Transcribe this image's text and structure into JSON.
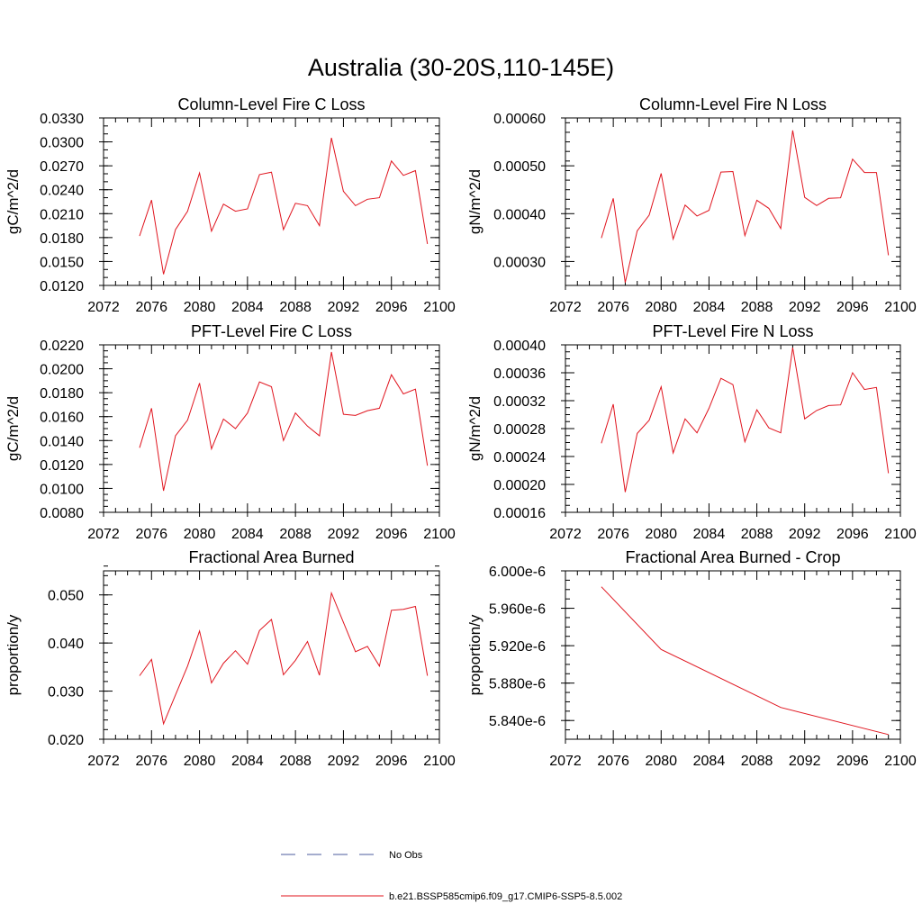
{
  "title": "Australia (30-20S,110-145E)",
  "colors": {
    "model": "#e0141e",
    "obs": "#4b5b9c"
  },
  "legend": [
    {
      "label": "No Obs",
      "style": "dashed",
      "color": "#4b5b9c"
    },
    {
      "label": "b.e21.BSSP585cmip6.f09_g17.CMIP6-SSP5-8.5.002",
      "style": "solid",
      "color": "#e0141e"
    }
  ],
  "chart_data": [
    {
      "type": "line",
      "title": "Column-Level Fire C Loss",
      "ylabel": "gC/m^2/d",
      "xlim": [
        2072,
        2100
      ],
      "xticks": [
        2072,
        2076,
        2080,
        2084,
        2088,
        2092,
        2096,
        2100
      ],
      "ylim": [
        0.012,
        0.033
      ],
      "yticks": [
        0.012,
        0.015,
        0.018,
        0.021,
        0.024,
        0.027,
        0.03,
        0.033
      ],
      "ytick_labels": [
        "0.0120",
        "0.0150",
        "0.0180",
        "0.0210",
        "0.0240",
        "0.0270",
        "0.0300",
        "0.0330"
      ],
      "yminor": 0.001,
      "x": [
        2075,
        2076,
        2077,
        2078,
        2079,
        2080,
        2081,
        2082,
        2083,
        2084,
        2085,
        2086,
        2087,
        2088,
        2089,
        2090,
        2091,
        2092,
        2093,
        2094,
        2095,
        2096,
        2097,
        2098,
        2099
      ],
      "series": [
        {
          "name": "b.e21.BSSP585cmip6.f09_g17.CMIP6-SSP5-8.5.002",
          "values": [
            0.0182,
            0.0227,
            0.0134,
            0.019,
            0.0213,
            0.0261,
            0.0188,
            0.0222,
            0.0213,
            0.0216,
            0.0259,
            0.0262,
            0.019,
            0.0223,
            0.022,
            0.0195,
            0.0305,
            0.0238,
            0.022,
            0.0228,
            0.023,
            0.0276,
            0.0258,
            0.0264,
            0.0172
          ]
        }
      ]
    },
    {
      "type": "line",
      "title": "Column-Level Fire N Loss",
      "ylabel": "gN/m^2/d",
      "xlim": [
        2072,
        2100
      ],
      "xticks": [
        2072,
        2076,
        2080,
        2084,
        2088,
        2092,
        2096,
        2100
      ],
      "ylim": [
        0.00025,
        0.0006
      ],
      "yticks": [
        0.0003,
        0.0004,
        0.0005,
        0.0006
      ],
      "ytick_labels": [
        "0.00030",
        "0.00040",
        "0.00050",
        "0.00060"
      ],
      "yminor": 2e-05,
      "x": [
        2075,
        2076,
        2077,
        2078,
        2079,
        2080,
        2081,
        2082,
        2083,
        2084,
        2085,
        2086,
        2087,
        2088,
        2089,
        2090,
        2091,
        2092,
        2093,
        2094,
        2095,
        2096,
        2097,
        2098,
        2099
      ],
      "series": [
        {
          "name": "b.e21.BSSP585cmip6.f09_g17.CMIP6-SSP5-8.5.002",
          "values": [
            0.000349,
            0.000432,
            0.000256,
            0.000364,
            0.000397,
            0.000484,
            0.000347,
            0.000418,
            0.000395,
            0.000407,
            0.000487,
            0.000488,
            0.000354,
            0.000428,
            0.000411,
            0.000369,
            0.000574,
            0.000434,
            0.000417,
            0.000432,
            0.000433,
            0.000514,
            0.000486,
            0.000486,
            0.000313
          ]
        }
      ]
    },
    {
      "type": "line",
      "title": "PFT-Level Fire C Loss",
      "ylabel": "gC/m^2/d",
      "xlim": [
        2072,
        2100
      ],
      "xticks": [
        2072,
        2076,
        2080,
        2084,
        2088,
        2092,
        2096,
        2100
      ],
      "ylim": [
        0.008,
        0.022
      ],
      "yticks": [
        0.008,
        0.01,
        0.012,
        0.014,
        0.016,
        0.018,
        0.02,
        0.022
      ],
      "ytick_labels": [
        "0.0080",
        "0.0100",
        "0.0120",
        "0.0140",
        "0.0160",
        "0.0180",
        "0.0200",
        "0.0220"
      ],
      "yminor": 0.0005,
      "x": [
        2075,
        2076,
        2077,
        2078,
        2079,
        2080,
        2081,
        2082,
        2083,
        2084,
        2085,
        2086,
        2087,
        2088,
        2089,
        2090,
        2091,
        2092,
        2093,
        2094,
        2095,
        2096,
        2097,
        2098,
        2099
      ],
      "series": [
        {
          "name": "b.e21.BSSP585cmip6.f09_g17.CMIP6-SSP5-8.5.002",
          "values": [
            0.0134,
            0.0167,
            0.0098,
            0.0144,
            0.0157,
            0.0188,
            0.0133,
            0.0158,
            0.015,
            0.0163,
            0.0189,
            0.0185,
            0.014,
            0.0163,
            0.0152,
            0.0144,
            0.0214,
            0.0162,
            0.0161,
            0.0165,
            0.0167,
            0.0195,
            0.0179,
            0.0183,
            0.0119
          ]
        }
      ]
    },
    {
      "type": "line",
      "title": "PFT-Level Fire N Loss",
      "ylabel": "gN/m^2/d",
      "xlim": [
        2072,
        2100
      ],
      "xticks": [
        2072,
        2076,
        2080,
        2084,
        2088,
        2092,
        2096,
        2100
      ],
      "ylim": [
        0.00016,
        0.0004
      ],
      "yticks": [
        0.00016,
        0.0002,
        0.00024,
        0.00028,
        0.00032,
        0.00036,
        0.0004
      ],
      "ytick_labels": [
        "0.00016",
        "0.00020",
        "0.00024",
        "0.00028",
        "0.00032",
        "0.00036",
        "0.00040"
      ],
      "yminor": 1e-05,
      "x": [
        2075,
        2076,
        2077,
        2078,
        2079,
        2080,
        2081,
        2082,
        2083,
        2084,
        2085,
        2086,
        2087,
        2088,
        2089,
        2090,
        2091,
        2092,
        2093,
        2094,
        2095,
        2096,
        2097,
        2098,
        2099
      ],
      "series": [
        {
          "name": "b.e21.BSSP585cmip6.f09_g17.CMIP6-SSP5-8.5.002",
          "values": [
            0.000259,
            0.000315,
            0.000189,
            0.000273,
            0.000292,
            0.00034,
            0.000245,
            0.000294,
            0.000274,
            0.000309,
            0.000352,
            0.000343,
            0.000261,
            0.000307,
            0.000281,
            0.000274,
            0.000396,
            0.000294,
            0.000306,
            0.000313,
            0.000314,
            0.00036,
            0.000336,
            0.000339,
            0.000216
          ]
        }
      ]
    },
    {
      "type": "line",
      "title": "Fractional Area Burned",
      "ylabel": "proportion/y",
      "xlim": [
        2072,
        2100
      ],
      "xticks": [
        2072,
        2076,
        2080,
        2084,
        2088,
        2092,
        2096,
        2100
      ],
      "ylim": [
        0.02,
        0.055
      ],
      "yticks": [
        0.02,
        0.03,
        0.04,
        0.05
      ],
      "ytick_labels": [
        "0.020",
        "0.030",
        "0.040",
        "0.050"
      ],
      "yminor": 0.002,
      "x": [
        2075,
        2076,
        2077,
        2078,
        2079,
        2080,
        2081,
        2082,
        2083,
        2084,
        2085,
        2086,
        2087,
        2088,
        2089,
        2090,
        2091,
        2092,
        2093,
        2094,
        2095,
        2096,
        2097,
        2098,
        2099
      ],
      "series": [
        {
          "name": "b.e21.BSSP585cmip6.f09_g17.CMIP6-SSP5-8.5.002",
          "values": [
            0.0332,
            0.0366,
            0.0232,
            0.0292,
            0.0352,
            0.0425,
            0.0317,
            0.0358,
            0.0384,
            0.0356,
            0.0426,
            0.0449,
            0.0334,
            0.0364,
            0.0403,
            0.0333,
            0.0504,
            0.0443,
            0.0382,
            0.0393,
            0.0352,
            0.0468,
            0.047,
            0.0476,
            0.0332
          ]
        }
      ]
    },
    {
      "type": "line",
      "title": "Fractional Area Burned - Crop",
      "ylabel": "proportion/y",
      "xlim": [
        2072,
        2100
      ],
      "xticks": [
        2072,
        2076,
        2080,
        2084,
        2088,
        2092,
        2096,
        2100
      ],
      "ylim": [
        5.82e-06,
        6e-06
      ],
      "yticks": [
        5.84e-06,
        5.88e-06,
        5.92e-06,
        5.96e-06,
        6e-06
      ],
      "ytick_labels": [
        "5.840e-6",
        "5.880e-6",
        "5.920e-6",
        "5.960e-6",
        "6.000e-6"
      ],
      "yminor": 1e-08,
      "x": [
        2075,
        2080,
        2090,
        2099
      ],
      "series": [
        {
          "name": "b.e21.BSSP585cmip6.f09_g17.CMIP6-SSP5-8.5.002",
          "values": [
            5.983e-06,
            5.916e-06,
            5.854e-06,
            5.825e-06
          ]
        }
      ]
    }
  ]
}
